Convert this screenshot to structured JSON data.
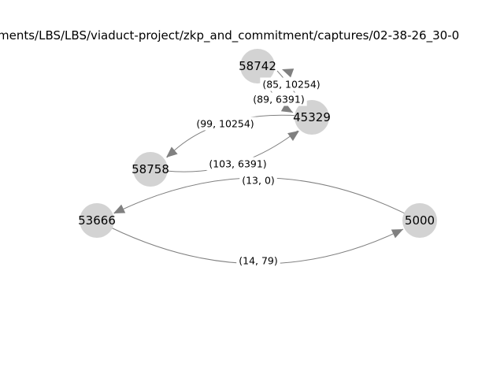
{
  "title": "ments/LBS/LBS/viaduct-project/zkp_and_commitment/captures/02-38-26_30-0",
  "colors": {
    "node": "#d3d3d3",
    "edge": "#808080",
    "background": "#ffffff"
  },
  "nodes": [
    {
      "id": "n58742",
      "label": "58742"
    },
    {
      "id": "n45329",
      "label": "45329"
    },
    {
      "id": "n58758",
      "label": "58758"
    },
    {
      "id": "n53666",
      "label": "53666"
    },
    {
      "id": "n5000",
      "label": "5000"
    }
  ],
  "edges": [
    {
      "id": "e1",
      "source": "n45329",
      "target": "n58742",
      "label": "(85, 10254)"
    },
    {
      "id": "e2",
      "source": "n58742",
      "target": "n45329",
      "label": "(89, 6391)"
    },
    {
      "id": "e3",
      "source": "n45329",
      "target": "n58758",
      "label": "(99, 10254)"
    },
    {
      "id": "e4",
      "source": "n58758",
      "target": "n45329",
      "label": "(103, 6391)"
    },
    {
      "id": "e5",
      "source": "n5000",
      "target": "n53666",
      "label": "(13, 0)"
    },
    {
      "id": "e6",
      "source": "n53666",
      "target": "n5000",
      "label": "(14, 79)"
    }
  ]
}
